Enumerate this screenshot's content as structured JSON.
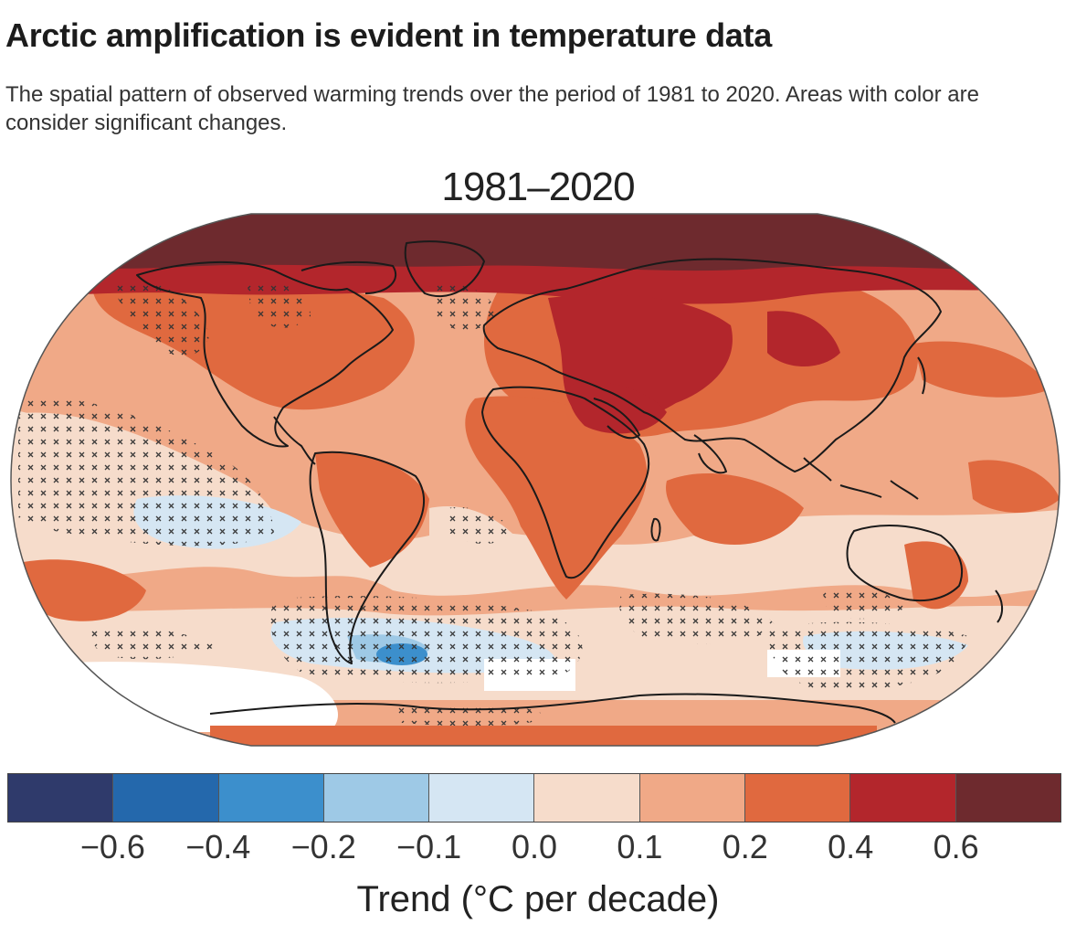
{
  "header": {
    "title": "Arctic amplification is evident in temperature data",
    "subtitle": "The spatial pattern of observed warming trends over the period of 1981 to 2020. Areas with color are consider significant changes."
  },
  "map": {
    "period_label": "1981–2020",
    "colors": {
      "ocean_light": "#f6dccb",
      "warm_1": "#f0a987",
      "warm_2": "#e0693f",
      "warm_3": "#b3262c",
      "warm_4": "#6e2a2e",
      "cool_1": "#d5e6f3",
      "cool_2": "#9ec9e6",
      "cool_3": "#3c8fcc",
      "nodata": "#ffffff",
      "coast": "#1a1a1a"
    }
  },
  "colorbar": {
    "label": "Trend (°C per decade)",
    "colors": [
      "#2f3a6b",
      "#2468ac",
      "#3c8fcc",
      "#9ec9e6",
      "#d5e6f3",
      "#f6dccb",
      "#f0a987",
      "#e0693f",
      "#b3262c",
      "#6e2a2e"
    ],
    "ticks": [
      "−0.6",
      "−0.4",
      "−0.2",
      "−0.1",
      "0.0",
      "0.1",
      "0.2",
      "0.4",
      "0.6"
    ]
  }
}
